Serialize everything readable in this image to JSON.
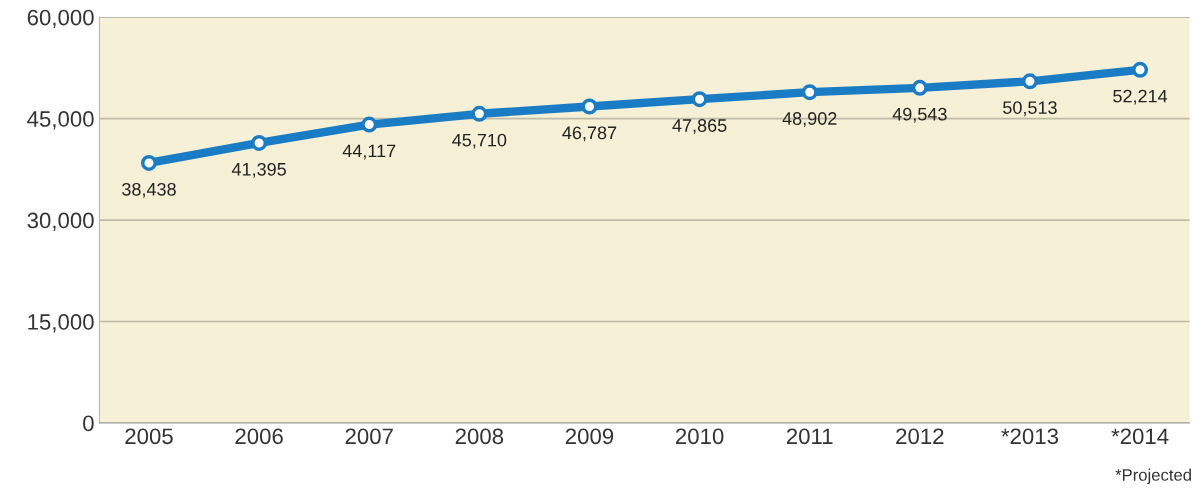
{
  "chart_data": {
    "type": "line",
    "categories": [
      "2005",
      "2006",
      "2007",
      "2008",
      "2009",
      "2010",
      "2011",
      "2012",
      "*2013",
      "*2014"
    ],
    "series": [
      {
        "color": "#1a7cc4",
        "values": [
          38438,
          41395,
          44117,
          45710,
          46787,
          47865,
          48902,
          49543,
          50513,
          52214
        ],
        "value_labels": [
          "38,438",
          "41,395",
          "44,117",
          "45,710",
          "46,787",
          "47,865",
          "48,902",
          "49,543",
          "50,513",
          "52,214"
        ]
      }
    ],
    "ylim": [
      0,
      60000
    ],
    "yticks": [
      {
        "value": 0,
        "label": "0"
      },
      {
        "value": 15000,
        "label": "15,000"
      },
      {
        "value": 30000,
        "label": "30,000"
      },
      {
        "value": 45000,
        "label": "45,000"
      },
      {
        "value": 60000,
        "label": "60,000"
      }
    ],
    "grid": "y",
    "marker": "circle",
    "line_style": "solid",
    "legend": false,
    "annotations": [
      "*Projected"
    ]
  }
}
